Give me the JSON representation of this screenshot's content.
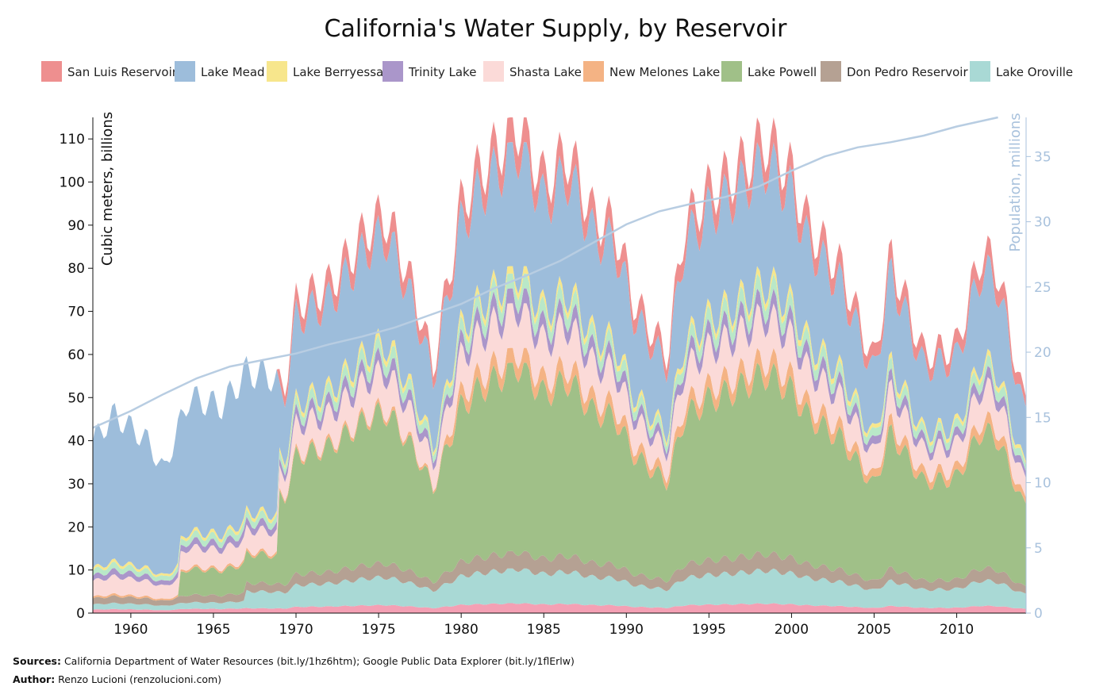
{
  "chart_data": {
    "type": "area",
    "title": "California's Water Supply, by Reservoir",
    "ylabel": "Cubic meters, billions",
    "ylabel_right": "Population, millions",
    "xlim": [
      1957.7,
      2014.2
    ],
    "ylim": [
      0,
      115
    ],
    "ylim_right": [
      0,
      38
    ],
    "x_ticks": [
      1960,
      1965,
      1970,
      1975,
      1980,
      1985,
      1990,
      1995,
      2000,
      2005,
      2010
    ],
    "y_ticks": [
      0,
      10,
      20,
      30,
      40,
      50,
      60,
      70,
      80,
      90,
      100,
      110
    ],
    "y_ticks_right": [
      0,
      5,
      10,
      15,
      20,
      25,
      30,
      35
    ],
    "legend_position": "top",
    "legend": [
      {
        "name": "San Luis Reservoir",
        "color": "#ee8f8f"
      },
      {
        "name": "Lake Mead",
        "color": "#9dbddb"
      },
      {
        "name": "Lake Berryessa",
        "color": "#f7e68c"
      },
      {
        "name": "Trinity Lake",
        "color": "#aa96ca"
      },
      {
        "name": "Shasta Lake",
        "color": "#fbdad8"
      },
      {
        "name": "New Melones Lake",
        "color": "#f4b384"
      },
      {
        "name": "Lake Powell",
        "color": "#a0c088"
      },
      {
        "name": "Don Pedro Reservoir",
        "color": "#b5a193"
      },
      {
        "name": "Lake Oroville",
        "color": "#a9d9d5"
      }
    ],
    "total_storage_estimate": {
      "x": [
        1957.7,
        1959,
        1961,
        1962,
        1963.5,
        1965.5,
        1967,
        1968.5,
        1969.3,
        1970,
        1972,
        1974.5,
        1975.5,
        1976.5,
        1977.5,
        1978.3,
        1980,
        1981,
        1983.5,
        1985,
        1986.5,
        1988,
        1989.3,
        1990.5,
        1992.5,
        1993.5,
        1995,
        1996.5,
        1998.5,
        2000,
        2001,
        2003,
        2005,
        2006,
        2008,
        2010,
        2011.5,
        2012.5,
        2014
      ],
      "y": [
        40,
        46,
        40,
        33,
        50,
        48,
        56,
        55,
        52,
        72,
        76,
        90,
        92,
        82,
        70,
        57,
        95,
        102,
        114,
        100,
        107,
        92,
        90,
        72,
        60,
        90,
        98,
        102,
        110,
        102,
        90,
        80,
        58,
        83,
        60,
        62,
        84,
        80,
        50
      ]
    },
    "population": {
      "x": [
        1957.7,
        1960,
        1962,
        1964,
        1966,
        1968,
        1970,
        1972,
        1974,
        1976,
        1978,
        1980,
        1982,
        1984,
        1986,
        1988,
        1990,
        1992,
        1994,
        1996,
        1998,
        2000,
        2002,
        2004,
        2006,
        2008,
        2010,
        2012.5
      ],
      "y": [
        14.2,
        15.5,
        16.8,
        18.0,
        18.9,
        19.4,
        19.9,
        20.6,
        21.2,
        21.9,
        22.8,
        23.7,
        24.9,
        25.9,
        27.0,
        28.4,
        29.8,
        30.8,
        31.4,
        31.9,
        32.7,
        33.9,
        35.0,
        35.7,
        36.1,
        36.6,
        37.3,
        38.0
      ]
    }
  },
  "footer": {
    "sources_label": "Sources:",
    "sources_text": " California Department of Water Resources (bit.ly/1hz6htm); Google Public Data Explorer (bit.ly/1flErlw)",
    "author_label": "Author:",
    "author_text": " Renzo Lucioni (renzolucioni.com)"
  }
}
